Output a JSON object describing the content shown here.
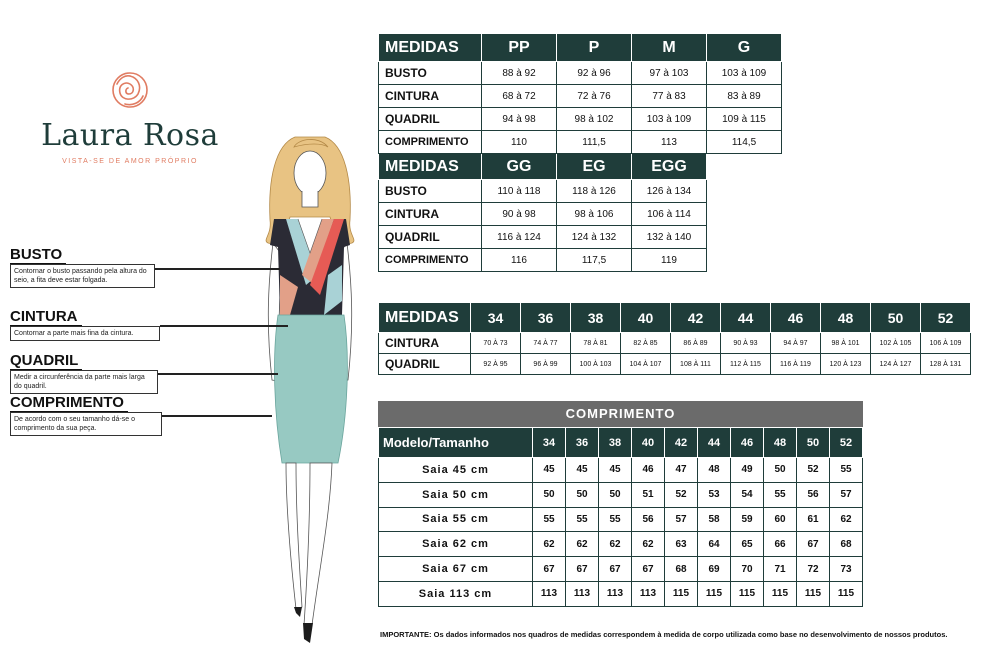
{
  "brand": {
    "name": "Laura Rosa",
    "tagline": "VISTA-SE DE AMOR PRÓPRIO",
    "logo_icon": "rose-icon",
    "colors": {
      "primary": "#1f3d3a",
      "accent": "#e07c62",
      "header_gray": "#6b6b6b"
    }
  },
  "guide": [
    {
      "title": "BUSTO",
      "desc": "Contornar o busto passando pela altura do seio, a fita deve estar folgada."
    },
    {
      "title": "CINTURA",
      "desc": "Contornar a parte mais fina da cintura."
    },
    {
      "title": "QUADRIL",
      "desc": "Medir a circunferência da parte mais larga do quadril."
    },
    {
      "title": "COMPRIMENTO",
      "desc": "De acordo com o seu tamanho dá-se o comprimento da sua peça."
    }
  ],
  "sizes_table": {
    "header_label": "MEDIDAS",
    "group1": {
      "sizes": [
        "PP",
        "P",
        "M",
        "G"
      ],
      "rows": [
        {
          "label": "BUSTO",
          "values": [
            "88 à 92",
            "92 à 96",
            "97 à 103",
            "103 à 109"
          ]
        },
        {
          "label": "CINTURA",
          "values": [
            "68 à 72",
            "72 à 76",
            "77 à 83",
            "83 à 89"
          ]
        },
        {
          "label": "QUADRIL",
          "values": [
            "94 à 98",
            "98 à 102",
            "103 à 109",
            "109 à 115"
          ]
        },
        {
          "label": "COMPRIMENTO",
          "values": [
            "110",
            "111,5",
            "113",
            "114,5"
          ]
        }
      ]
    },
    "group2": {
      "sizes": [
        "GG",
        "EG",
        "EGG"
      ],
      "rows": [
        {
          "label": "BUSTO",
          "values": [
            "110 à 118",
            "118 à 126",
            "126 à 134"
          ]
        },
        {
          "label": "CINTURA",
          "values": [
            "90 à 98",
            "98 à 106",
            "106 à 114"
          ]
        },
        {
          "label": "QUADRIL",
          "values": [
            "116 à 124",
            "124 à 132",
            "132 à 140"
          ]
        },
        {
          "label": "COMPRIMENTO",
          "values": [
            "116",
            "117,5",
            "119"
          ]
        }
      ]
    }
  },
  "numeric_table": {
    "header_label": "MEDIDAS",
    "sizes": [
      "34",
      "36",
      "38",
      "40",
      "42",
      "44",
      "46",
      "48",
      "50",
      "52"
    ],
    "rows": [
      {
        "label": "CINTURA",
        "values": [
          "70 À 73",
          "74 À 77",
          "78 À 81",
          "82 À 85",
          "86 À 89",
          "90 À 93",
          "94 À 97",
          "98 À 101",
          "102 À 105",
          "106 À 109"
        ]
      },
      {
        "label": "QUADRIL",
        "values": [
          "92 À 95",
          "96 À 99",
          "100 À 103",
          "104 À 107",
          "108 À 111",
          "112 À 115",
          "116 À 119",
          "120 À 123",
          "124 À 127",
          "128 À 131"
        ]
      }
    ]
  },
  "length_table": {
    "title": "COMPRIMENTO",
    "header_label": "Modelo/Tamanho",
    "sizes": [
      "34",
      "36",
      "38",
      "40",
      "42",
      "44",
      "46",
      "48",
      "50",
      "52"
    ],
    "rows": [
      {
        "label": "Saia 45 cm",
        "values": [
          "45",
          "45",
          "45",
          "46",
          "47",
          "48",
          "49",
          "50",
          "52",
          "55"
        ]
      },
      {
        "label": "Saia 50 cm",
        "values": [
          "50",
          "50",
          "50",
          "51",
          "52",
          "53",
          "54",
          "55",
          "56",
          "57"
        ]
      },
      {
        "label": "Saia 55 cm",
        "values": [
          "55",
          "55",
          "55",
          "56",
          "57",
          "58",
          "59",
          "60",
          "61",
          "62"
        ]
      },
      {
        "label": "Saia 62 cm",
        "values": [
          "62",
          "62",
          "62",
          "62",
          "63",
          "64",
          "65",
          "66",
          "67",
          "68"
        ]
      },
      {
        "label": "Saia 67 cm",
        "values": [
          "67",
          "67",
          "67",
          "67",
          "68",
          "69",
          "70",
          "71",
          "72",
          "73"
        ]
      },
      {
        "label": "Saia 113 cm",
        "values": [
          "113",
          "113",
          "113",
          "113",
          "115",
          "115",
          "115",
          "115",
          "115",
          "115"
        ]
      }
    ]
  },
  "note": "IMPORTANTE: Os dados informados nos quadros de medidas correspondem à medida de corpo utilizada como base no desenvolvimento de nossos produtos."
}
